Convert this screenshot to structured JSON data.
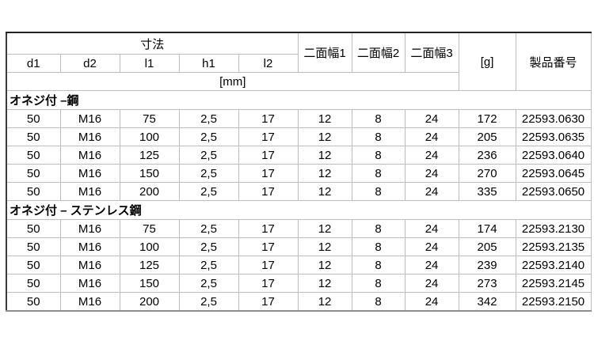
{
  "table": {
    "header": {
      "dim_group_label": "寸法",
      "dim_columns": [
        "d1",
        "d2",
        "l1",
        "h1",
        "l2"
      ],
      "width_columns": [
        "二面幅1",
        "二面幅2",
        "二面幅3"
      ],
      "unit_row_label": "[mm]",
      "weight_label": "[g]",
      "product_label": "製品番号"
    },
    "sections": [
      {
        "title": "オネジ付 –鋼",
        "rows": [
          [
            "50",
            "M16",
            "75",
            "2,5",
            "17",
            "12",
            "8",
            "24",
            "172",
            "22593.0630"
          ],
          [
            "50",
            "M16",
            "100",
            "2,5",
            "17",
            "12",
            "8",
            "24",
            "205",
            "22593.0635"
          ],
          [
            "50",
            "M16",
            "125",
            "2,5",
            "17",
            "12",
            "8",
            "24",
            "236",
            "22593.0640"
          ],
          [
            "50",
            "M16",
            "150",
            "2,5",
            "17",
            "12",
            "8",
            "24",
            "270",
            "22593.0645"
          ],
          [
            "50",
            "M16",
            "200",
            "2,5",
            "17",
            "12",
            "8",
            "24",
            "335",
            "22593.0650"
          ]
        ]
      },
      {
        "title": "オネジ付 – ステンレス鋼",
        "rows": [
          [
            "50",
            "M16",
            "75",
            "2,5",
            "17",
            "12",
            "8",
            "24",
            "174",
            "22593.2130"
          ],
          [
            "50",
            "M16",
            "100",
            "2,5",
            "17",
            "12",
            "8",
            "24",
            "205",
            "22593.2135"
          ],
          [
            "50",
            "M16",
            "125",
            "2,5",
            "17",
            "12",
            "8",
            "24",
            "239",
            "22593.2140"
          ],
          [
            "50",
            "M16",
            "150",
            "2,5",
            "17",
            "12",
            "8",
            "24",
            "273",
            "22593.2145"
          ],
          [
            "50",
            "M16",
            "200",
            "2,5",
            "17",
            "12",
            "8",
            "24",
            "342",
            "22593.2150"
          ]
        ]
      }
    ]
  }
}
